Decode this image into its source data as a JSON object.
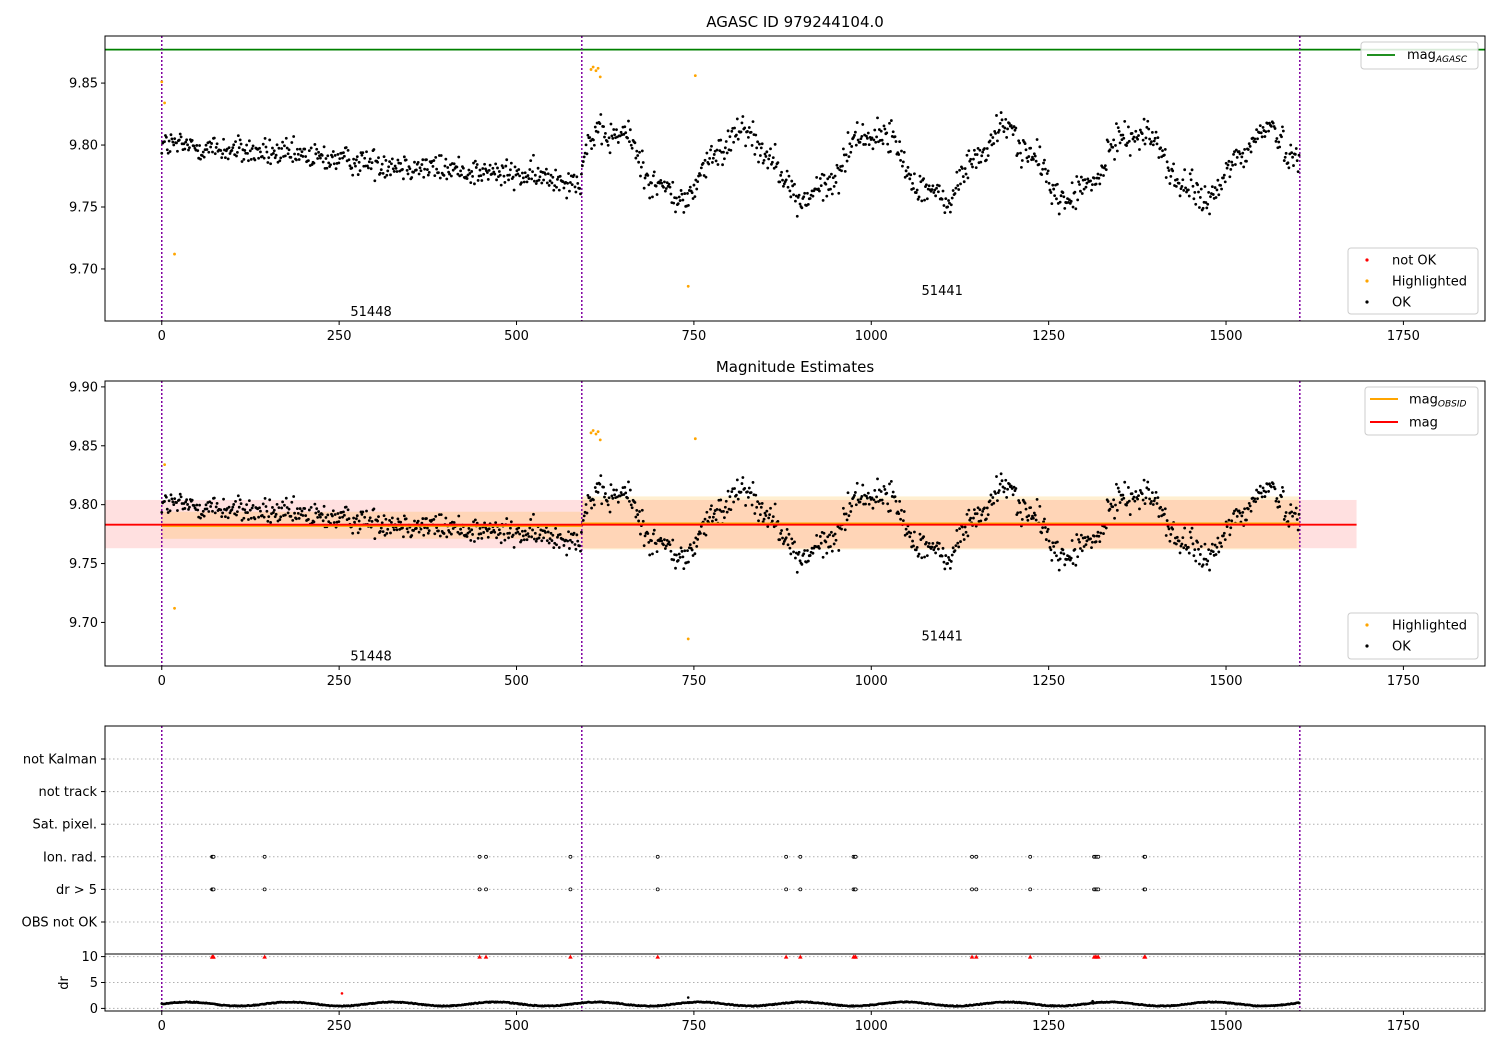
{
  "figure_title": "AGASC ID 979244104.0",
  "chart_data": [
    {
      "type": "scatter",
      "title": "AGASC ID 979244104.0",
      "xlim": [
        -80,
        1865
      ],
      "ylim": [
        9.658,
        9.888
      ],
      "xticks": [
        0,
        250,
        500,
        750,
        1000,
        1250,
        1500,
        1750
      ],
      "xtick_labels": [
        "0",
        "250",
        "500",
        "750",
        "1000",
        "1250",
        "1500",
        "1750"
      ],
      "yticks": [
        9.7,
        9.75,
        9.8,
        9.85
      ],
      "ytick_labels": [
        "9.70",
        "9.75",
        "9.80",
        "9.85"
      ],
      "observation_boundaries": [
        0,
        592,
        1604
      ],
      "obsid_labels": [
        {
          "text": "51448",
          "x": 295,
          "y": 9.666
        },
        {
          "text": "51441",
          "x": 1100,
          "y": 9.683
        }
      ],
      "reference_lines": [
        {
          "name": "mag_AGASC",
          "y": 9.877,
          "color": "#008000"
        }
      ],
      "highlighted_points": [
        [
          0,
          9.851
        ],
        [
          4,
          9.834
        ],
        [
          18,
          9.712
        ],
        [
          605,
          9.861
        ],
        [
          608,
          9.863
        ],
        [
          612,
          9.86
        ],
        [
          615,
          9.862
        ],
        [
          618,
          9.855
        ],
        [
          742,
          9.686
        ],
        [
          752,
          9.856
        ]
      ],
      "legend_line": {
        "label": "mag",
        "subscript": "AGASC",
        "color": "#008000",
        "position": "top-right"
      },
      "legend_points": {
        "position": "bottom-right",
        "entries": [
          {
            "label": "not OK",
            "color": "#ff0000"
          },
          {
            "label": "Highlighted",
            "color": "#ffa500"
          },
          {
            "label": "OK",
            "color": "#000000"
          }
        ]
      },
      "grid": false
    },
    {
      "type": "scatter",
      "title": "Magnitude Estimates",
      "xlim": [
        -80,
        1865
      ],
      "ylim": [
        9.663,
        9.905
      ],
      "xticks": [
        0,
        250,
        500,
        750,
        1000,
        1250,
        1500,
        1750
      ],
      "xtick_labels": [
        "0",
        "250",
        "500",
        "750",
        "1000",
        "1250",
        "1500",
        "1750"
      ],
      "yticks": [
        9.7,
        9.75,
        9.8,
        9.85,
        9.9
      ],
      "ytick_labels": [
        "9.70",
        "9.75",
        "9.80",
        "9.85",
        "9.90"
      ],
      "observation_boundaries": [
        0,
        592,
        1604
      ],
      "obsid_labels": [
        {
          "text": "51448",
          "x": 295,
          "y": 9.672
        },
        {
          "text": "51441",
          "x": 1100,
          "y": 9.689
        }
      ],
      "mag_line": {
        "name": "mag",
        "y": 9.783,
        "band": [
          9.763,
          9.804
        ],
        "x_range": [
          -80,
          1684
        ],
        "color": "#ff0000"
      },
      "mag_obsid": [
        {
          "name": "51448",
          "x_range": [
            0,
            592
          ],
          "y": 9.782,
          "band": [
            9.771,
            9.794
          ]
        },
        {
          "name": "51441",
          "x_range": [
            592,
            1604
          ],
          "y": 9.784,
          "band": [
            9.762,
            9.807
          ]
        }
      ],
      "highlighted_points": [
        [
          4,
          9.834
        ],
        [
          18,
          9.712
        ],
        [
          605,
          9.861
        ],
        [
          608,
          9.863
        ],
        [
          612,
          9.86
        ],
        [
          615,
          9.862
        ],
        [
          618,
          9.855
        ],
        [
          742,
          9.686
        ],
        [
          752,
          9.856
        ]
      ],
      "legend_line": {
        "position": "top-right",
        "entries": [
          {
            "label": "mag",
            "subscript": "OBSID",
            "color": "#ffa500"
          },
          {
            "label": "mag",
            "subscript": "",
            "color": "#ff0000"
          }
        ]
      },
      "legend_points": {
        "position": "bottom-right",
        "entries": [
          {
            "label": "Highlighted",
            "color": "#ffa500"
          },
          {
            "label": "OK",
            "color": "#000000"
          }
        ]
      },
      "grid": false
    },
    {
      "type": "scatter",
      "title": "",
      "xlim": [
        -80,
        1865
      ],
      "categories": [
        "not Kalman",
        "not track",
        "Sat. pixel.",
        "Ion. rad.",
        "dr > 5",
        "OBS not OK"
      ],
      "flags": {
        "Ion. rad.": [
          71,
          72,
          73,
          145,
          448,
          457,
          576,
          699,
          880,
          900,
          975,
          977,
          978,
          1142,
          1148,
          1224,
          1314,
          1316,
          1318,
          1320,
          1385,
          1386
        ],
        "dr > 5": [
          71,
          72,
          73,
          145,
          448,
          457,
          576,
          699,
          880,
          900,
          975,
          977,
          978,
          1142,
          1148,
          1224,
          1314,
          1316,
          1318,
          1320,
          1385,
          1386
        ]
      },
      "observation_boundaries": [
        0,
        592,
        1604
      ],
      "grid": "horizontal dotted"
    },
    {
      "type": "scatter",
      "title": "",
      "ylabel": "dr",
      "xlim": [
        -80,
        1865
      ],
      "ylim": [
        -0.5,
        10.5
      ],
      "xticks": [
        0,
        250,
        500,
        750,
        1000,
        1250,
        1500,
        1750
      ],
      "xtick_labels": [
        "0",
        "250",
        "500",
        "750",
        "1000",
        "1250",
        "1500",
        "1750"
      ],
      "yticks": [
        0,
        5,
        10
      ],
      "ytick_labels": [
        "0",
        "5",
        "10"
      ],
      "clipped_at_10": [
        71,
        72,
        73,
        145,
        448,
        457,
        576,
        699,
        880,
        900,
        975,
        977,
        978,
        1142,
        1148,
        1224,
        1314,
        1316,
        1318,
        1320,
        1385,
        1386
      ],
      "outliers": [
        [
          254,
          2.9
        ],
        [
          742,
          2.1
        ],
        [
          1312,
          1.4
        ]
      ],
      "typical_dr_range": [
        0.3,
        1.4
      ],
      "observation_boundaries": [
        0,
        592,
        1604
      ],
      "grid": "horizontal dotted"
    }
  ]
}
